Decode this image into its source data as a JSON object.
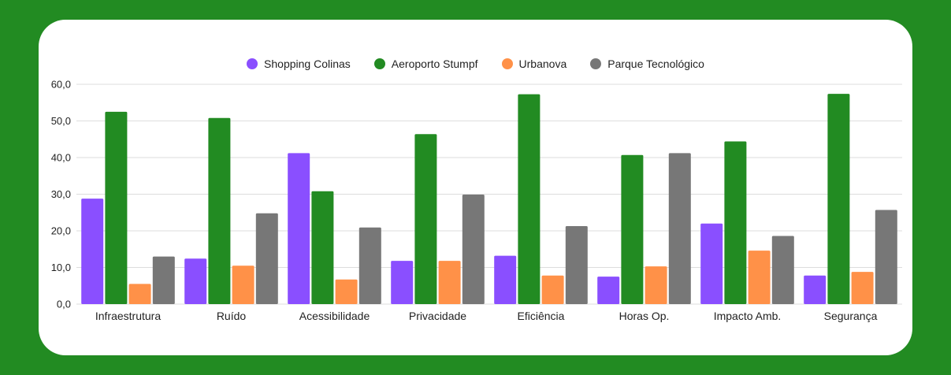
{
  "colors": {
    "frame_background": "#228b22",
    "card_background": "#ffffff",
    "gridline": "#dddddd",
    "axis_text": "#222222"
  },
  "chart_data": {
    "type": "bar",
    "title": "",
    "xlabel": "",
    "ylabel": "",
    "categories": [
      "Infraestrutura",
      "Ruído",
      "Acessibilidade",
      "Privacidade",
      "Eficiência",
      "Horas Op.",
      "Impacto Amb.",
      "Segurança"
    ],
    "series": [
      {
        "name": "Shopping Colinas",
        "color": "#8a4fff",
        "values": [
          28.8,
          12.4,
          41.2,
          11.8,
          13.2,
          7.5,
          22.0,
          7.8
        ]
      },
      {
        "name": "Aeroporto Stumpf",
        "color": "#228b22",
        "values": [
          52.5,
          50.8,
          30.8,
          46.4,
          57.3,
          40.7,
          44.4,
          57.4
        ]
      },
      {
        "name": "Urbanova",
        "color": "#ff9148",
        "values": [
          5.5,
          10.5,
          6.7,
          11.8,
          7.8,
          10.3,
          14.6,
          8.8
        ]
      },
      {
        "name": "Parque Tecnológico",
        "color": "#777777",
        "values": [
          13.0,
          24.8,
          20.9,
          29.9,
          21.3,
          41.2,
          18.6,
          25.7
        ]
      }
    ],
    "ylim": [
      0,
      60
    ],
    "yticks": [
      "0,0",
      "10,0",
      "20,0",
      "30,0",
      "40,0",
      "50,0",
      "60,0"
    ],
    "grid": true,
    "legend_position": "top-center"
  }
}
